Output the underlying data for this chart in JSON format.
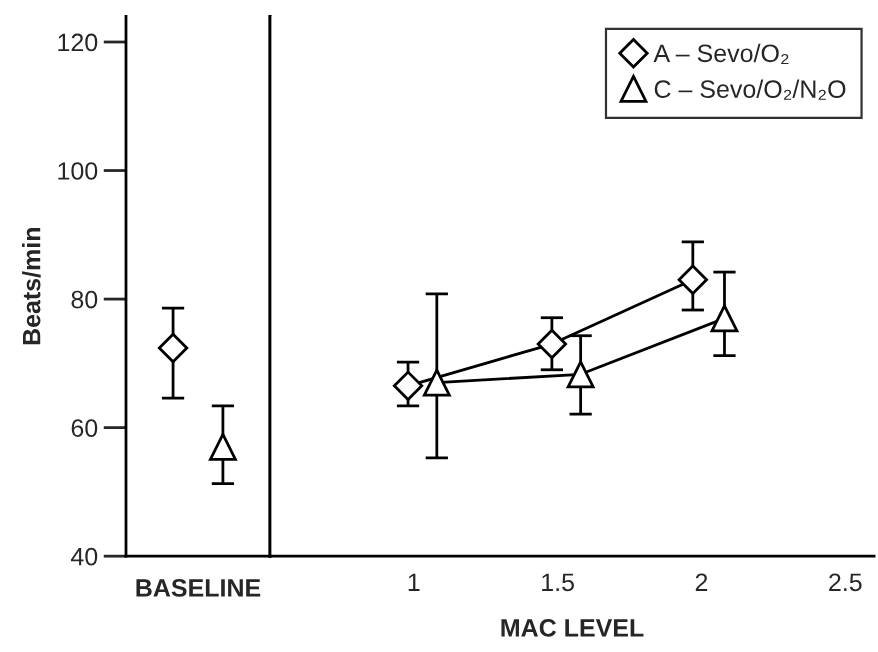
{
  "chart_data": [
    {
      "type": "scatter",
      "categories": [
        null
      ],
      "xlabel": "BASELINE",
      "ylabel": "Beats/min",
      "ylim": [
        40,
        124
      ],
      "yticks": [
        40,
        60,
        80,
        100,
        120
      ],
      "tick_labels": "y",
      "grid": false,
      "legend": false,
      "series": [
        {
          "color": "#000000",
          "marker": "diamond",
          "values": [
            72.4
          ],
          "errors": [
            [
              64.6,
              78.6
            ]
          ]
        },
        {
          "color": "#000000",
          "marker": "triangle",
          "values": [
            57
          ],
          "errors": [
            [
              51.3,
              63.4
            ]
          ]
        }
      ]
    },
    {
      "type": "line",
      "xlabel": "MAC LEVEL",
      "xlim": [
        0.5,
        2.6
      ],
      "xticks": [
        1,
        1.5,
        2,
        2.5
      ],
      "ylim": [
        40,
        124
      ],
      "tick_labels": "x",
      "grid": false,
      "legend": "top right",
      "line_style": "solid",
      "series": [
        {
          "name": "A – Sevo/O₂",
          "color": "#000000",
          "marker": "diamond",
          "x": [
            0.98,
            1.48,
            1.97
          ],
          "values": [
            66.5,
            73,
            83
          ],
          "errors": [
            [
              63.4,
              70.2
            ],
            [
              69,
              77.1
            ],
            [
              78.3,
              88.9
            ]
          ]
        },
        {
          "name": "C – Sevo/O₂/N₂O",
          "color": "#000000",
          "marker": "triangle",
          "x": [
            1.08,
            1.58,
            2.08
          ],
          "values": [
            67,
            68.3,
            77
          ],
          "errors": [
            [
              55.3,
              80.8
            ],
            [
              62.1,
              74.3
            ],
            [
              71.2,
              84.2
            ]
          ]
        }
      ]
    }
  ]
}
